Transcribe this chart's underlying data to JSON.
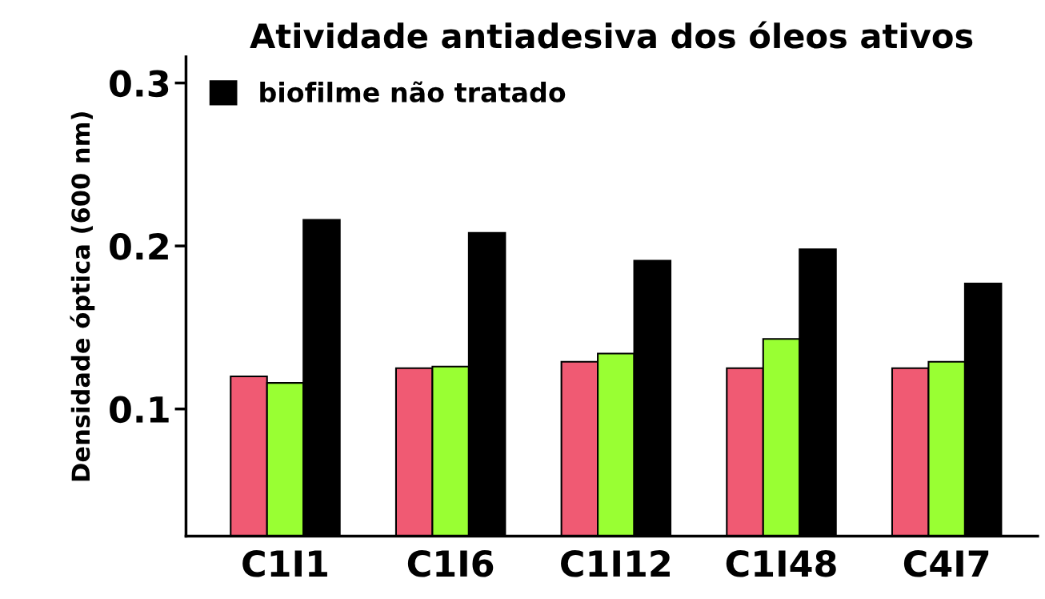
{
  "chart_data": {
    "type": "bar",
    "title": "Atividade antiadesiva dos óleos ativos",
    "ylabel": "Densidade óptica (600 nm)",
    "categories": [
      "C1I1",
      "C1I6",
      "C1I12",
      "C1I48",
      "C4I7"
    ],
    "series": [
      {
        "color": "#f05a73",
        "values": [
          0.12,
          0.125,
          0.129,
          0.125,
          0.125
        ]
      },
      {
        "color": "#99ff33",
        "values": [
          0.116,
          0.126,
          0.134,
          0.143,
          0.129
        ]
      },
      {
        "name": "biofilme não tratado",
        "color": "#000000",
        "values": [
          0.216,
          0.208,
          0.191,
          0.198,
          0.177
        ]
      }
    ],
    "ylim": [
      0.022,
      0.316
    ],
    "yticks": [
      0.1,
      0.2,
      0.3
    ],
    "grid": false,
    "legend": "top left"
  }
}
